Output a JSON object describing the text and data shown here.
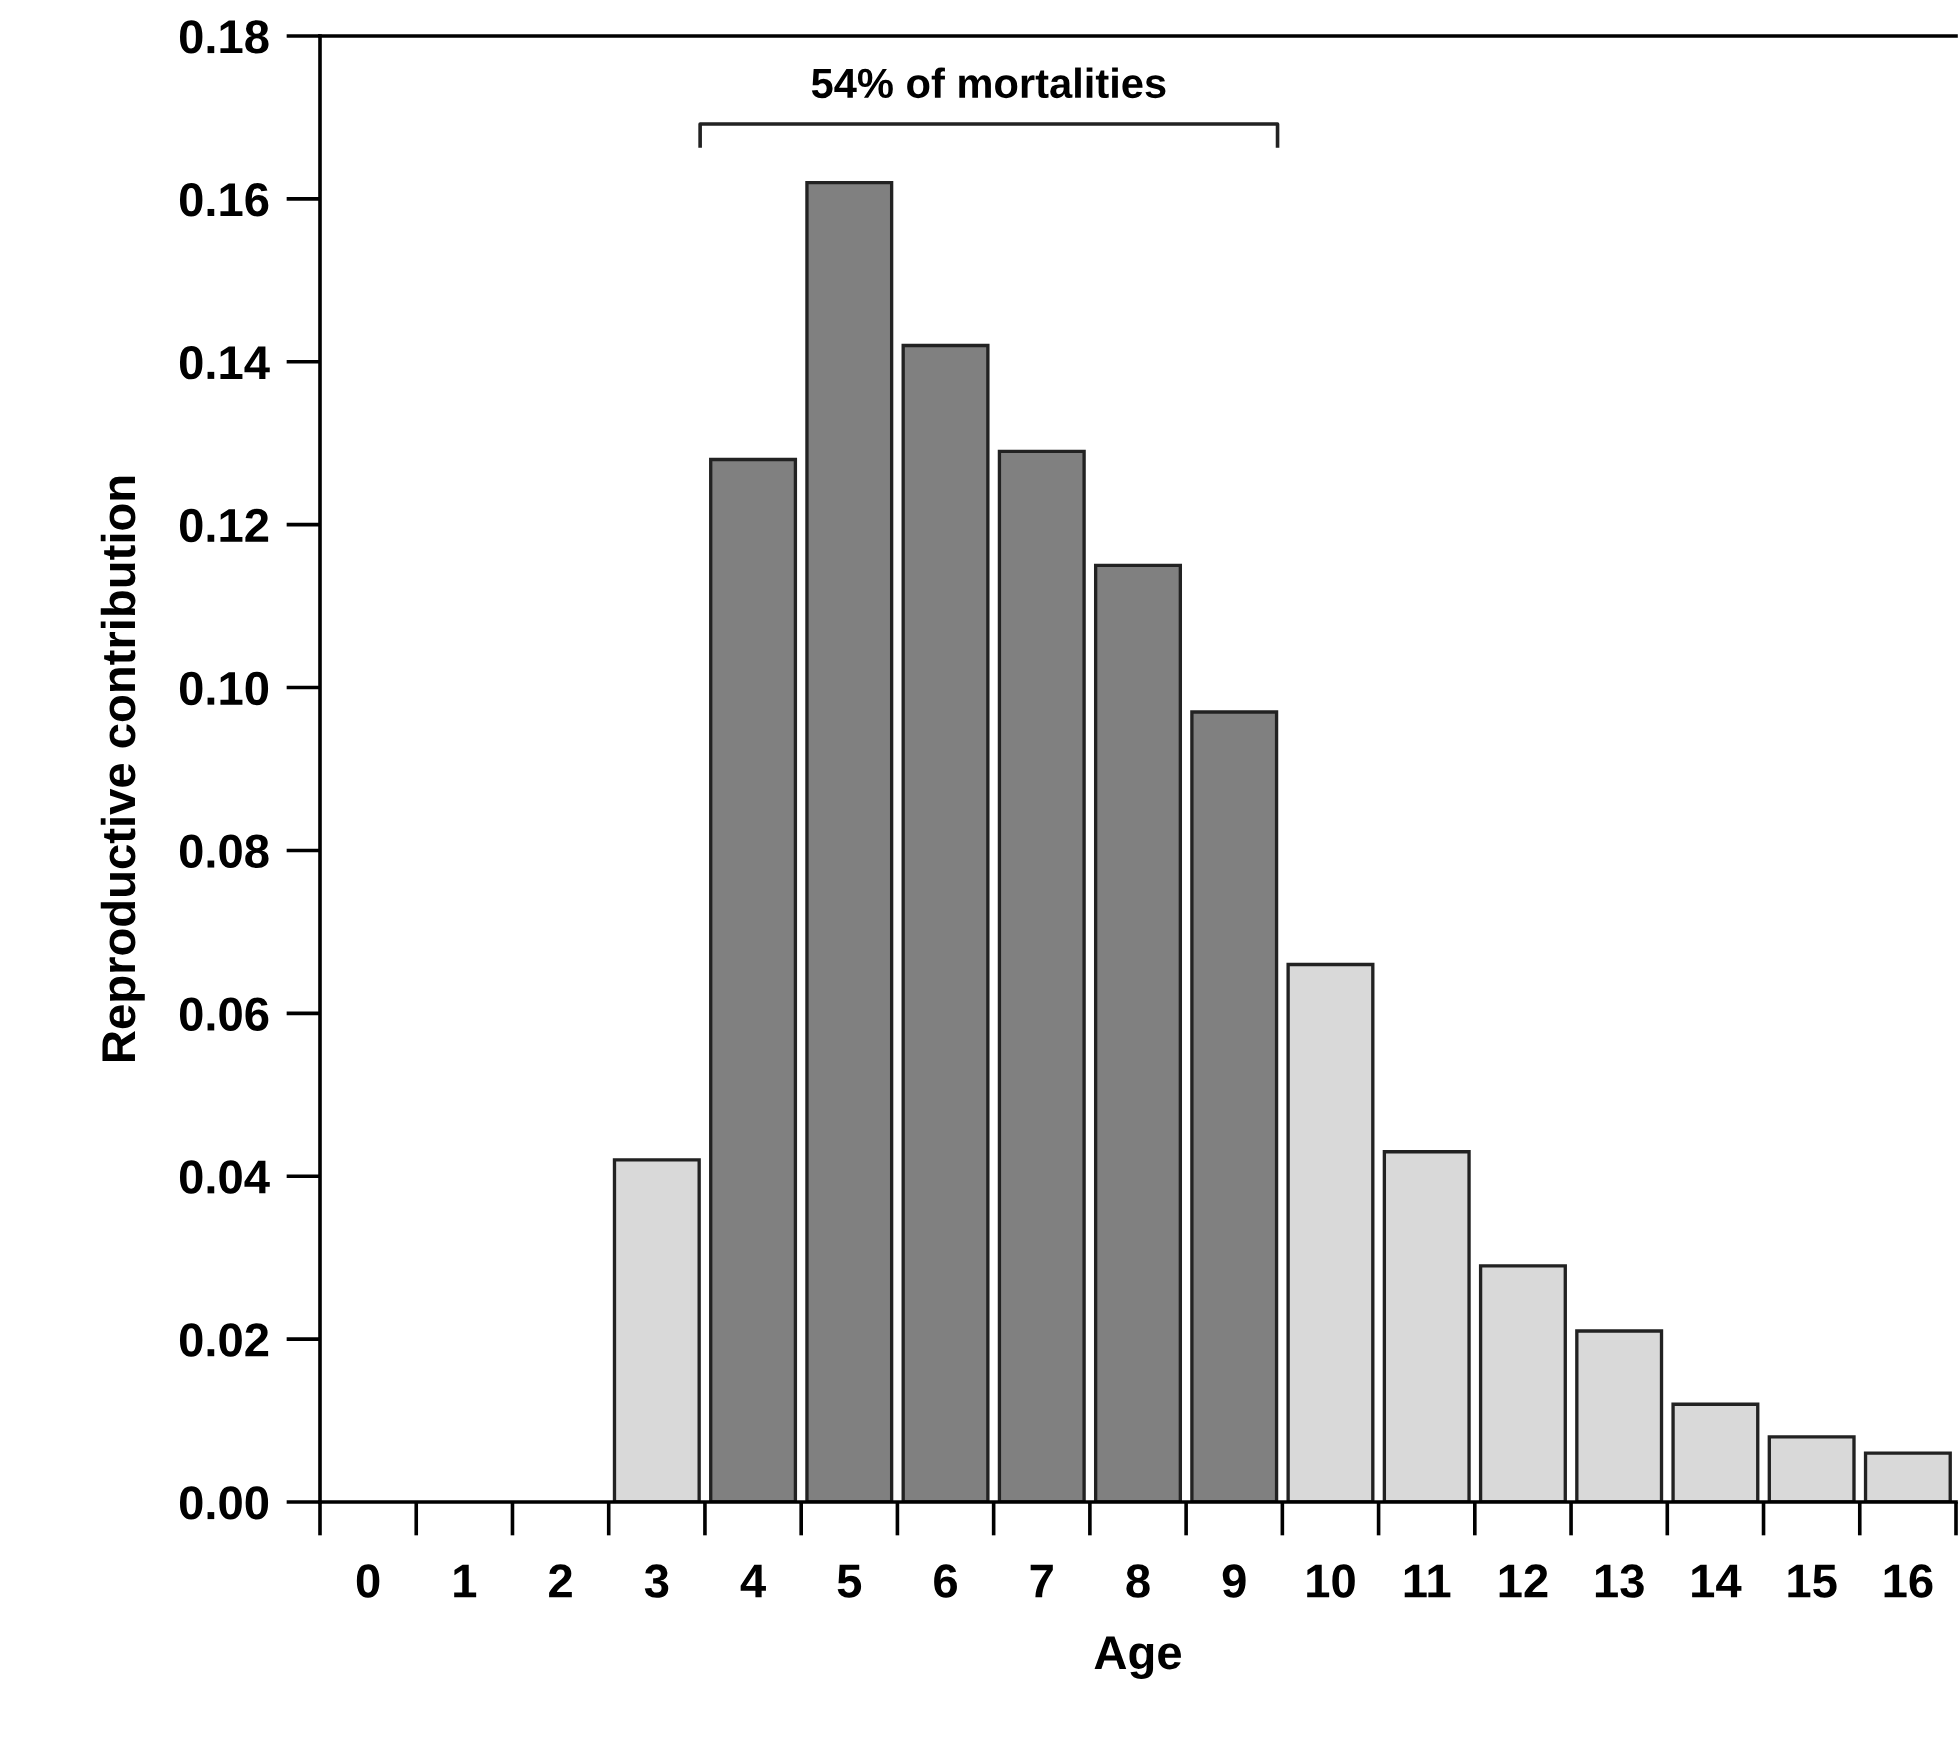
{
  "chart_data": {
    "type": "bar",
    "xlabel": "Age",
    "ylabel": "Reproductive contribution",
    "categories": [
      "0",
      "1",
      "2",
      "3",
      "4",
      "5",
      "6",
      "7",
      "8",
      "9",
      "10",
      "11",
      "12",
      "13",
      "14",
      "15",
      "16"
    ],
    "values": [
      0,
      0,
      0,
      0.042,
      0.128,
      0.162,
      0.142,
      0.129,
      0.115,
      0.097,
      0.066,
      0.043,
      0.029,
      0.021,
      0.012,
      0.008,
      0.006
    ],
    "colors": [
      "#d9d9d9",
      "#d9d9d9",
      "#d9d9d9",
      "#d9d9d9",
      "#808080",
      "#808080",
      "#808080",
      "#808080",
      "#808080",
      "#808080",
      "#d9d9d9",
      "#d9d9d9",
      "#d9d9d9",
      "#d9d9d9",
      "#d9d9d9",
      "#d9d9d9",
      "#d9d9d9"
    ],
    "ylim": [
      0,
      0.18
    ],
    "yticks": [
      {
        "value": 0,
        "label": "0.00"
      },
      {
        "value": 0.02,
        "label": "0.02"
      },
      {
        "value": 0.04,
        "label": "0.04"
      },
      {
        "value": 0.06,
        "label": "0.06"
      },
      {
        "value": 0.08,
        "label": "0.08"
      },
      {
        "value": 0.1,
        "label": "0.10"
      },
      {
        "value": 0.12,
        "label": "0.12"
      },
      {
        "value": 0.14,
        "label": "0.14"
      },
      {
        "value": 0.16,
        "label": "0.16"
      },
      {
        "value": 0.18,
        "label": "0.18"
      }
    ],
    "annotations": [
      "54% of mortalities"
    ],
    "grid": false,
    "legend": false
  }
}
